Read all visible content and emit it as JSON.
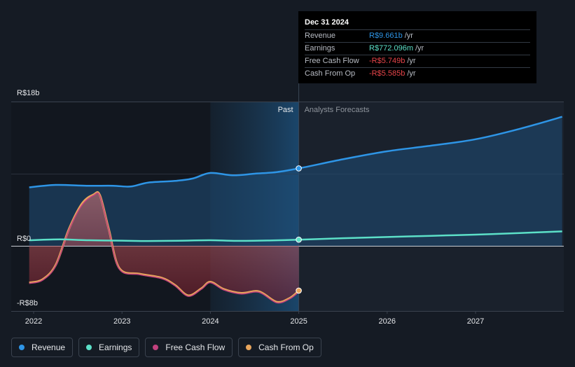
{
  "chart_data": {
    "type": "line",
    "y_axis": {
      "labels": [
        "R$18b",
        "R$0",
        "-R$8b"
      ],
      "ylim": [
        -8,
        18
      ],
      "unit": "R$ billions"
    },
    "x_ticks": [
      "2022",
      "2023",
      "2024",
      "2025",
      "2026",
      "2027"
    ],
    "xlim": [
      2021.95,
      2027.98
    ],
    "divider_x": 2025.0,
    "past_band_start": 2024.0,
    "past_label": "Past",
    "forecast_label": "Analysts Forecasts",
    "series": [
      {
        "name": "Revenue",
        "color": "#2e95e6",
        "fill": true,
        "x": [
          2021.95,
          2022.25,
          2022.6,
          2022.9,
          2023.1,
          2023.3,
          2023.6,
          2023.8,
          2024.0,
          2024.25,
          2024.5,
          2024.75,
          2025.0
        ],
        "values": [
          7.3,
          7.6,
          7.5,
          7.5,
          7.4,
          7.9,
          8.1,
          8.4,
          9.1,
          8.8,
          9.0,
          9.2,
          9.661
        ],
        "forecast_x": [
          2025.0,
          2025.5,
          2026.0,
          2026.5,
          2027.0,
          2027.5,
          2027.98
        ],
        "forecast_values": [
          9.661,
          10.8,
          11.8,
          12.5,
          13.3,
          14.6,
          16.1
        ]
      },
      {
        "name": "Earnings",
        "color": "#5ce0c8",
        "fill": false,
        "x": [
          2021.95,
          2022.3,
          2022.6,
          2023.0,
          2023.3,
          2023.7,
          2024.0,
          2024.3,
          2024.7,
          2025.0
        ],
        "values": [
          0.7,
          0.8,
          0.7,
          0.65,
          0.6,
          0.65,
          0.7,
          0.62,
          0.68,
          0.772
        ],
        "forecast_x": [
          2025.0,
          2025.5,
          2026.0,
          2026.5,
          2027.0,
          2027.5,
          2027.98
        ],
        "forecast_values": [
          0.772,
          0.95,
          1.1,
          1.25,
          1.4,
          1.6,
          1.8
        ]
      },
      {
        "name": "Free Cash Flow",
        "color": "#c1417e",
        "fill": true,
        "x": [
          2021.95,
          2022.1,
          2022.25,
          2022.4,
          2022.55,
          2022.68,
          2022.75,
          2022.85,
          2022.97,
          2023.2,
          2023.45,
          2023.6,
          2023.75,
          2023.9,
          2024.0,
          2024.15,
          2024.35,
          2024.55,
          2024.75,
          2024.9,
          2025.0
        ],
        "values": [
          -4.7,
          -4.3,
          -2.5,
          2.0,
          5.1,
          6.3,
          6.2,
          2.0,
          -2.9,
          -3.6,
          -4.1,
          -5.0,
          -6.3,
          -5.4,
          -4.6,
          -5.5,
          -6.0,
          -5.8,
          -7.1,
          -6.6,
          -5.749
        ]
      },
      {
        "name": "Cash From Op",
        "color": "#e8a55c",
        "fill": false,
        "x": [
          2021.95,
          2022.1,
          2022.25,
          2022.4,
          2022.55,
          2022.68,
          2022.75,
          2022.85,
          2022.97,
          2023.2,
          2023.45,
          2023.6,
          2023.75,
          2023.9,
          2024.0,
          2024.15,
          2024.35,
          2024.55,
          2024.75,
          2024.9,
          2025.0
        ],
        "values": [
          -4.6,
          -4.2,
          -2.4,
          2.1,
          5.3,
          6.4,
          6.3,
          2.1,
          -2.8,
          -3.5,
          -4.0,
          -4.9,
          -6.2,
          -5.3,
          -4.5,
          -5.4,
          -5.9,
          -5.7,
          -7.0,
          -6.5,
          -5.585
        ]
      }
    ]
  },
  "tooltip": {
    "date": "Dec 31 2024",
    "rows": [
      {
        "label": "Revenue",
        "value": "R$9.661b",
        "unit": "/yr",
        "color": "#2e95e6"
      },
      {
        "label": "Earnings",
        "value": "R$772.096m",
        "unit": "/yr",
        "color": "#5ce0c8"
      },
      {
        "label": "Free Cash Flow",
        "value": "-R$5.749b",
        "unit": "/yr",
        "color": "#e8454a"
      },
      {
        "label": "Cash From Op",
        "value": "-R$5.585b",
        "unit": "/yr",
        "color": "#e8454a"
      }
    ]
  },
  "legend": [
    {
      "label": "Revenue",
      "color": "#2e95e6"
    },
    {
      "label": "Earnings",
      "color": "#5ce0c8"
    },
    {
      "label": "Free Cash Flow",
      "color": "#c1417e"
    },
    {
      "label": "Cash From Op",
      "color": "#e8a55c"
    }
  ]
}
